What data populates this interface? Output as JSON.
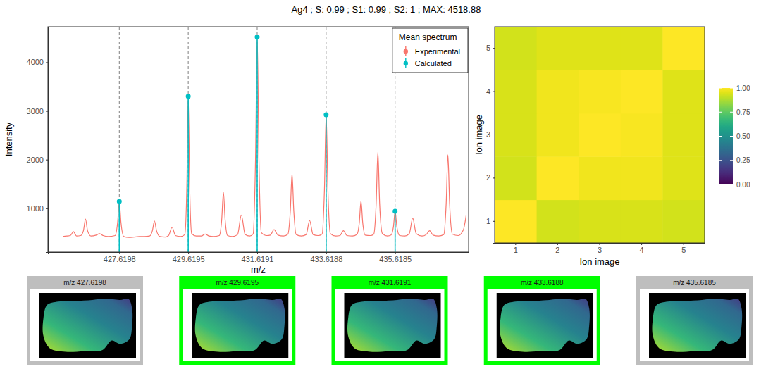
{
  "chart_data": [
    {
      "type": "line",
      "title": "Ag4 ; S: 0.99 ; S1: 0.99 ; S2: 1 ; MAX: 4518.88",
      "x_label": "m/z",
      "y_label": "Intensity",
      "legend_title": "Mean spectrum",
      "legend": "top-right",
      "grid": "x",
      "xlim": [
        425.55,
        437.75
      ],
      "ylim": [
        100,
        4730
      ],
      "xticks": [
        427.6198,
        429.6195,
        431.6191,
        433.6188,
        435.6185
      ],
      "yticks": [
        1000,
        2000,
        3000,
        4000
      ],
      "series": [
        {
          "name": "Experimental",
          "color": "#F8766D",
          "type": "line",
          "x": [
            425.98,
            426.1,
            426.2,
            426.29,
            426.38,
            426.5,
            426.58,
            426.64,
            426.7,
            426.8,
            426.95,
            427.05,
            427.15,
            427.3,
            427.5,
            427.57,
            427.62,
            427.67,
            427.75,
            427.9,
            428.05,
            428.2,
            428.35,
            428.5,
            428.58,
            428.64,
            428.7,
            428.8,
            428.95,
            429.05,
            429.15,
            429.25,
            429.4,
            429.52,
            429.58,
            429.62,
            429.66,
            429.72,
            429.85,
            430.0,
            430.11,
            430.22,
            430.35,
            430.52,
            430.59,
            430.64,
            430.69,
            430.76,
            430.9,
            431.05,
            431.16,
            431.27,
            431.4,
            431.5,
            431.57,
            431.62,
            431.67,
            431.74,
            431.9,
            432.0,
            432.11,
            432.22,
            432.38,
            432.51,
            432.58,
            432.63,
            432.68,
            432.75,
            432.9,
            433.04,
            433.14,
            433.24,
            433.38,
            433.5,
            433.57,
            433.62,
            433.67,
            433.74,
            433.9,
            434.02,
            434.12,
            434.22,
            434.38,
            434.51,
            434.58,
            434.63,
            434.68,
            434.75,
            434.9,
            435.0,
            435.07,
            435.12,
            435.17,
            435.25,
            435.4,
            435.5,
            435.57,
            435.62,
            435.67,
            435.75,
            435.9,
            436.03,
            436.13,
            436.23,
            436.4,
            436.52,
            436.62,
            436.72,
            436.88,
            437.03,
            437.1,
            437.15,
            437.2,
            437.28,
            437.45,
            437.6,
            437.68
          ],
          "values": [
            420,
            430,
            440,
            520,
            430,
            440,
            540,
            780,
            540,
            430,
            450,
            480,
            440,
            420,
            440,
            700,
            1130,
            700,
            420,
            400,
            410,
            420,
            420,
            430,
            540,
            740,
            540,
            420,
            410,
            440,
            610,
            440,
            420,
            460,
            1500,
            3300,
            1500,
            480,
            430,
            430,
            470,
            430,
            420,
            440,
            760,
            1330,
            760,
            440,
            420,
            460,
            860,
            460,
            430,
            470,
            2000,
            4518.88,
            2000,
            500,
            440,
            450,
            560,
            450,
            430,
            470,
            950,
            1710,
            950,
            460,
            430,
            460,
            750,
            460,
            440,
            470,
            1400,
            2920,
            1400,
            480,
            430,
            440,
            540,
            440,
            430,
            460,
            700,
            1150,
            700,
            450,
            440,
            470,
            1100,
            2160,
            1100,
            480,
            430,
            450,
            620,
            940,
            620,
            440,
            430,
            480,
            800,
            480,
            430,
            460,
            540,
            450,
            430,
            460,
            1100,
            2100,
            1100,
            470,
            440,
            560,
            860
          ]
        },
        {
          "name": "Calculated",
          "color": "#00BFC4",
          "type": "stem",
          "marker": "circle",
          "x": [
            427.6198,
            429.6195,
            431.6191,
            433.6188,
            435.6185
          ],
          "values": [
            1140,
            3300,
            4518.88,
            2920,
            940
          ]
        }
      ]
    },
    {
      "type": "heatmap",
      "x_label": "Ion image",
      "y_label": "Ion image",
      "xticks": [
        1,
        2,
        3,
        4,
        5
      ],
      "yticks": [
        1,
        2,
        3,
        4,
        5
      ],
      "cells": [
        [
          1,
          0.93,
          0.94,
          0.94,
          0.93
        ],
        [
          0.93,
          1,
          0.98,
          0.98,
          0.95
        ],
        [
          0.94,
          0.98,
          1,
          0.99,
          0.95
        ],
        [
          0.94,
          0.98,
          0.99,
          1,
          0.95
        ],
        [
          0.93,
          0.95,
          0.95,
          0.95,
          1
        ]
      ],
      "colorbar": {
        "range": [
          0,
          1
        ],
        "ticks": [
          {
            "value": 0,
            "label": "0.00"
          },
          {
            "value": 0.25,
            "label": "0.25"
          },
          {
            "value": 0.5,
            "label": "0.50"
          },
          {
            "value": 0.75,
            "label": "0.75"
          },
          {
            "value": 1,
            "label": "1.00"
          }
        ]
      }
    },
    {
      "type": "image",
      "titles": [
        "m/z 427.6198",
        "m/z 429.6195",
        "m/z 431.6191",
        "m/z 433.6188",
        "m/z 435.6185"
      ],
      "colors": [
        "#BEBEBE",
        "#00FF00",
        "#00FF00",
        "#00FF00",
        "#BEBEBE"
      ]
    }
  ]
}
